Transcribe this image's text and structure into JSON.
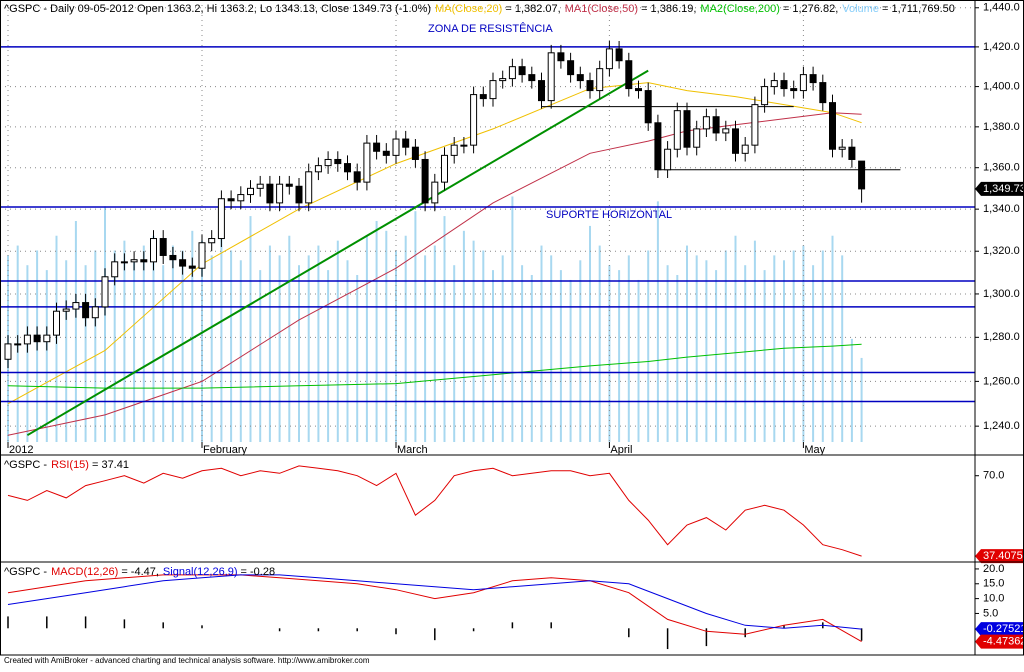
{
  "chart_data": [
    {
      "type": "candlestick",
      "title": "^GSPC - Daily 09-05-2012 Open 1363.2, Hi 1363.2, Lo 1343.13, Close 1349.73 (-1.0%)",
      "open": [
        1270,
        1277,
        1277,
        1281,
        1278,
        1281,
        1292,
        1293,
        1296,
        1289,
        1294,
        1308,
        1315,
        1315,
        1316,
        1315,
        1326,
        1318,
        1316,
        1313,
        1312,
        1324,
        1326,
        1345,
        1344,
        1347,
        1350,
        1352,
        1343,
        1352,
        1351,
        1343,
        1358,
        1361,
        1364,
        1362,
        1358,
        1353,
        1372,
        1368,
        1366,
        1374,
        1370,
        1364,
        1343,
        1353,
        1366,
        1371,
        1371,
        1396,
        1394,
        1403,
        1404,
        1410,
        1406,
        1403,
        1393,
        1417,
        1413,
        1406,
        1403,
        1398,
        1409,
        1419,
        1413,
        1399,
        1398,
        1382,
        1359,
        1369,
        1388,
        1370,
        1379,
        1385,
        1377,
        1379,
        1367,
        1371,
        1391,
        1400,
        1403,
        1399,
        1398,
        1406,
        1402,
        1392,
        1369,
        1370,
        1363.2
      ],
      "high": [
        1281,
        1281,
        1285,
        1285,
        1285,
        1296,
        1297,
        1300,
        1300,
        1298,
        1312,
        1319,
        1319,
        1320,
        1320,
        1330,
        1330,
        1322,
        1320,
        1317,
        1328,
        1330,
        1349,
        1349,
        1351,
        1354,
        1356,
        1356,
        1356,
        1356,
        1355,
        1362,
        1365,
        1368,
        1368,
        1366,
        1362,
        1376,
        1376,
        1372,
        1378,
        1378,
        1374,
        1368,
        1357,
        1370,
        1375,
        1375,
        1400,
        1400,
        1407,
        1408,
        1414,
        1414,
        1410,
        1407,
        1421,
        1421,
        1417,
        1410,
        1407,
        1413,
        1423,
        1423,
        1417,
        1403,
        1402,
        1386,
        1373,
        1392,
        1392,
        1383,
        1389,
        1389,
        1383,
        1383,
        1375,
        1395,
        1404,
        1407,
        1407,
        1403,
        1410,
        1410,
        1406,
        1396,
        1374,
        1374,
        1363.2
      ],
      "low": [
        1266,
        1273,
        1273,
        1274,
        1274,
        1277,
        1288,
        1289,
        1285,
        1285,
        1290,
        1304,
        1311,
        1311,
        1311,
        1311,
        1314,
        1312,
        1309,
        1308,
        1308,
        1320,
        1322,
        1340,
        1340,
        1343,
        1346,
        1339,
        1339,
        1347,
        1339,
        1339,
        1354,
        1357,
        1358,
        1354,
        1349,
        1349,
        1364,
        1362,
        1362,
        1366,
        1360,
        1339,
        1339,
        1349,
        1362,
        1367,
        1367,
        1390,
        1390,
        1399,
        1400,
        1402,
        1399,
        1389,
        1389,
        1409,
        1402,
        1399,
        1394,
        1394,
        1405,
        1409,
        1395,
        1394,
        1378,
        1355,
        1355,
        1365,
        1366,
        1366,
        1375,
        1373,
        1373,
        1363,
        1363,
        1367,
        1387,
        1396,
        1395,
        1394,
        1394,
        1398,
        1388,
        1365,
        1365,
        1360,
        1343.13
      ],
      "close": [
        1277,
        1277,
        1281,
        1278,
        1281,
        1292,
        1293,
        1296,
        1289,
        1294,
        1308,
        1315,
        1315,
        1316,
        1315,
        1326,
        1318,
        1316,
        1313,
        1312,
        1324,
        1326,
        1345,
        1344,
        1347,
        1350,
        1352,
        1343,
        1352,
        1351,
        1343,
        1358,
        1361,
        1364,
        1362,
        1358,
        1353,
        1372,
        1368,
        1366,
        1374,
        1370,
        1364,
        1343,
        1353,
        1366,
        1371,
        1371,
        1396,
        1394,
        1403,
        1404,
        1410,
        1406,
        1403,
        1393,
        1417,
        1413,
        1406,
        1403,
        1398,
        1409,
        1419,
        1413,
        1399,
        1398,
        1382,
        1359,
        1369,
        1388,
        1370,
        1379,
        1385,
        1377,
        1379,
        1367,
        1371,
        1391,
        1400,
        1403,
        1399,
        1398,
        1406,
        1402,
        1392,
        1369,
        1370,
        1364,
        1349.73
      ],
      "volume": [
        3800000,
        4000000,
        3600000,
        3900000,
        3500000,
        4200000,
        3700000,
        4500000,
        3600000,
        3900000,
        4800000,
        3900000,
        4100000,
        3700000,
        4000000,
        4200000,
        3600000,
        4000000,
        3900000,
        4300000,
        4100000,
        3800000,
        4300000,
        3900000,
        3700000,
        4600000,
        3500000,
        4000000,
        3800000,
        4200000,
        3600000,
        3800000,
        4000000,
        3500000,
        4100000,
        3700000,
        3400000,
        4200000,
        4500000,
        4300000,
        3900000,
        4200000,
        4700000,
        3800000,
        4000000,
        4600000,
        3600000,
        4300000,
        4100000,
        3900000,
        3500000,
        3800000,
        5000000,
        3600000,
        3400000,
        4000000,
        3800000,
        3500000,
        3300000,
        3700000,
        4400000,
        4000000,
        3600000,
        3500000,
        3800000,
        3300000,
        3900000,
        4900000,
        3600000,
        3400000,
        4000000,
        3800000,
        3700000,
        3500000,
        3900000,
        4200000,
        3600000,
        4100000,
        3500000,
        3800000,
        3700000,
        3900000,
        4000000,
        3600000,
        3900000,
        4200000,
        3800000,
        2100000,
        1711769.5
      ],
      "volume_name": "Volume",
      "volume_label": "= 1,711,769.50",
      "volume_color": "#a8d8f0",
      "vlim": [
        0,
        9000000
      ],
      "series": [
        {
          "name": "MA(Close,20)",
          "label": "= 1,382.07,",
          "color": "#f0c000",
          "x": [
            0,
            10,
            20,
            30,
            40,
            50,
            60,
            66,
            70,
            75,
            80,
            85,
            88
          ],
          "values": [
            1250,
            1274,
            1314,
            1340,
            1362,
            1379,
            1399,
            1402,
            1398,
            1395,
            1391,
            1387,
            1382.07
          ]
        },
        {
          "name": "MA1(Close,50)",
          "label": "= 1,386.19,",
          "color": "#c03048",
          "x": [
            0,
            10,
            20,
            30,
            40,
            50,
            60,
            66,
            70,
            75,
            80,
            85,
            88
          ],
          "values": [
            1236,
            1245,
            1260,
            1288,
            1312,
            1343,
            1367,
            1373,
            1378,
            1381,
            1384,
            1387,
            1386.19
          ]
        },
        {
          "name": "MA2(Close,200)",
          "label": "= 1,276.82,",
          "color": "#00c000",
          "x": [
            0,
            10,
            20,
            30,
            40,
            50,
            60,
            66,
            70,
            75,
            80,
            85,
            88
          ],
          "values": [
            1258,
            1257,
            1257,
            1258,
            1259,
            1263,
            1267,
            1269,
            1271,
            1273,
            1275,
            1276,
            1276.82
          ]
        }
      ],
      "levels": [
        1420,
        1341,
        1306,
        1294,
        1264,
        1251
      ],
      "level_color": "#0000c0",
      "trendline": {
        "x": [
          2,
          66
        ],
        "values": [
          1236,
          1408
        ],
        "color": "#009000"
      },
      "segments": [
        {
          "x": [
            55,
            81
          ],
          "values": [
            1390,
            1390
          ]
        },
        {
          "x": [
            67,
            92
          ],
          "values": [
            1359,
            1359
          ]
        }
      ],
      "annotations": [
        "ZONA DE RESISTÊNCIA",
        "SUPORTE HORIZONTAL"
      ],
      "last_close": {
        "value": 1349.73,
        "label": "1,349.73"
      },
      "log": true,
      "ylim": [
        1233,
        1444
      ],
      "yticks": [
        {
          "value": 1240,
          "label": "1,240.0"
        },
        {
          "value": 1260,
          "label": "1,260.0"
        },
        {
          "value": 1280,
          "label": "1,280.0"
        },
        {
          "value": 1300,
          "label": "1,300.0"
        },
        {
          "value": 1320,
          "label": "1,320.0"
        },
        {
          "value": 1340,
          "label": "1,340.0"
        },
        {
          "value": 1360,
          "label": "1,360.0"
        },
        {
          "value": 1380,
          "label": "1,380.0"
        },
        {
          "value": 1400,
          "label": "1,400.0"
        },
        {
          "value": 1420,
          "label": "1,420.0"
        },
        {
          "value": 1440,
          "label": "1,440.0"
        }
      ],
      "xticks": [
        {
          "value": 0,
          "label": "2012"
        },
        {
          "value": 20,
          "label": "February"
        },
        {
          "value": 40,
          "label": "March"
        },
        {
          "value": 62,
          "label": "April"
        },
        {
          "value": 82,
          "label": "May"
        }
      ],
      "grid": true
    },
    {
      "type": "line",
      "title": "^GSPC -",
      "series": [
        {
          "name": "RSI(15)",
          "label": "= 37.41",
          "color": "#e00000",
          "x": [
            0,
            2,
            4,
            6,
            8,
            10,
            12,
            14,
            16,
            18,
            20,
            22,
            24,
            26,
            28,
            30,
            32,
            34,
            36,
            38,
            40,
            42,
            44,
            46,
            48,
            50,
            52,
            54,
            56,
            58,
            60,
            62,
            64,
            66,
            68,
            70,
            72,
            74,
            76,
            78,
            80,
            82,
            84,
            86,
            88
          ],
          "values": [
            62,
            60,
            64,
            61,
            66,
            68,
            70,
            67,
            71,
            69,
            72,
            73,
            70,
            72,
            71,
            74,
            73,
            72,
            70,
            66,
            71,
            54,
            60,
            70,
            72,
            73,
            70,
            71,
            72,
            72,
            70,
            71,
            60,
            52,
            42,
            50,
            53,
            48,
            56,
            58,
            56,
            50,
            42,
            40,
            37.41
          ]
        }
      ],
      "flags": [
        {
          "value": 37.4075,
          "color": "#e00000"
        }
      ],
      "ylim": [
        35,
        78
      ],
      "yticks": [
        {
          "value": 70,
          "label": "70.0"
        }
      ]
    },
    {
      "type": "line",
      "title": "^GSPC -",
      "series": [
        {
          "name": "MACD(12,26)",
          "label": "= -4.47,",
          "color": "#e00000",
          "x": [
            0,
            4,
            8,
            12,
            16,
            20,
            24,
            28,
            32,
            36,
            40,
            44,
            48,
            52,
            56,
            60,
            64,
            68,
            72,
            76,
            80,
            84,
            88
          ],
          "values": [
            12,
            14,
            16,
            17,
            18,
            18,
            18,
            17,
            16,
            15,
            13,
            10,
            12,
            16,
            17,
            16,
            12,
            3,
            -1,
            -2,
            1,
            3,
            -4.47
          ]
        },
        {
          "name": "Signal(12,26,9)",
          "label": "= -0.28",
          "color": "#0000e0",
          "x": [
            0,
            4,
            8,
            12,
            16,
            20,
            24,
            28,
            32,
            36,
            40,
            44,
            48,
            52,
            56,
            60,
            64,
            68,
            72,
            76,
            80,
            84,
            88
          ],
          "values": [
            8,
            10,
            12,
            14,
            16,
            17,
            18,
            18,
            17,
            16,
            15,
            14,
            13,
            14,
            15,
            16,
            15,
            10,
            5,
            1,
            0,
            1,
            -0.28
          ]
        }
      ],
      "histogram": {
        "x": [
          0,
          4,
          8,
          12,
          16,
          20,
          24,
          28,
          32,
          36,
          40,
          44,
          48,
          52,
          56,
          60,
          64,
          68,
          72,
          76,
          80,
          84,
          88
        ],
        "values": [
          4,
          4,
          4,
          3,
          2,
          1,
          0,
          -1,
          -1,
          -1,
          -2,
          -4,
          -1,
          2,
          2,
          0,
          -3,
          -7,
          -6,
          -3,
          1,
          2,
          -4.19
        ],
        "color": "#000000"
      },
      "flags": [
        {
          "value": -0.27521,
          "color": "#0000e0"
        },
        {
          "value": -4.47362,
          "color": "#e00000"
        }
      ],
      "ylim": [
        -9,
        22
      ],
      "yticks": [
        {
          "value": 5,
          "label": "5.0"
        },
        {
          "value": 10,
          "label": "10.0"
        },
        {
          "value": 15,
          "label": "15.0"
        },
        {
          "value": 20,
          "label": "20.0"
        }
      ]
    }
  ],
  "footer": "Created with AmiBroker - advanced charting and technical analysis software. http://www.amibroker.com"
}
